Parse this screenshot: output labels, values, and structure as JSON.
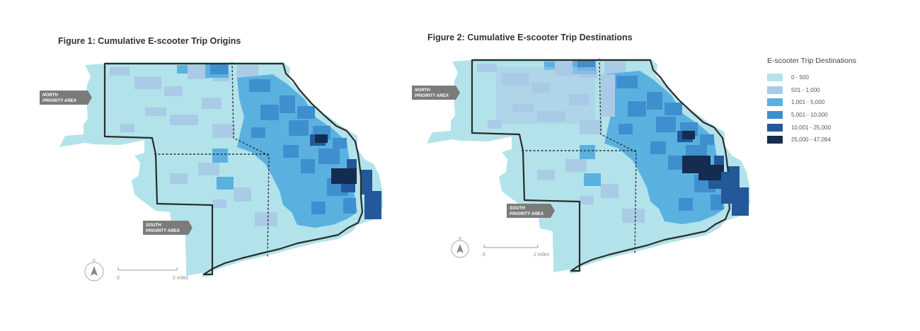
{
  "figures": [
    {
      "title": "Figure 1: Cumulative E-scooter Trip Origins",
      "north_tag": [
        "NORTH",
        "PRIORITY AREA"
      ],
      "south_tag": [
        "SOUTH",
        "PRIORITY AREA"
      ],
      "scale_start": "0",
      "scale_end": "2 miles",
      "north_arrow": "N"
    },
    {
      "title": "Figure 2: Cumulative E-scooter Trip Destinations",
      "north_tag": [
        "NORTH",
        "PRIORITY AREA"
      ],
      "south_tag": [
        "SOUTH",
        "PRIORITY AREA"
      ],
      "scale_start": "0",
      "scale_end": "2 miles",
      "north_arrow": "N"
    }
  ],
  "legend": {
    "title": "E-scooter Trip Destinations",
    "items": [
      {
        "label": "0 - 500",
        "color": "#b3e3ea"
      },
      {
        "label": "501 - 1,000",
        "color": "#a9cbe6"
      },
      {
        "label": "1,001 - 5,000",
        "color": "#5ab1e0"
      },
      {
        "label": "5,001 - 10,000",
        "color": "#3f8fcf"
      },
      {
        "label": "10,001 - 25,000",
        "color": "#23599a"
      },
      {
        "label": "25,000 - 47,094",
        "color": "#132c4f"
      }
    ]
  }
}
